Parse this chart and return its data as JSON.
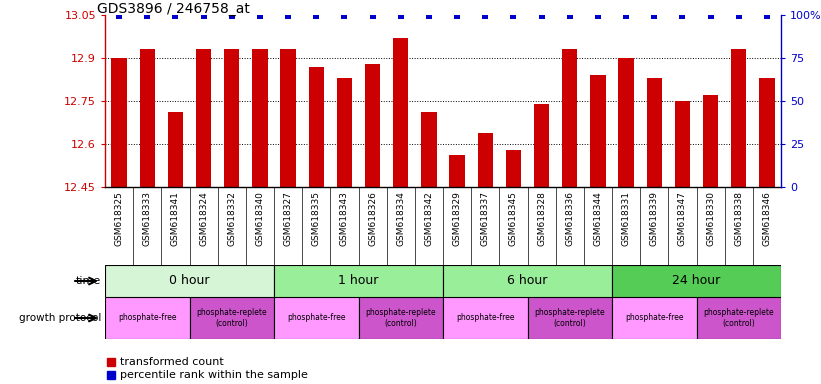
{
  "title": "GDS3896 / 246758_at",
  "samples": [
    "GSM618325",
    "GSM618333",
    "GSM618341",
    "GSM618324",
    "GSM618332",
    "GSM618340",
    "GSM618327",
    "GSM618335",
    "GSM618343",
    "GSM618326",
    "GSM618334",
    "GSM618342",
    "GSM618329",
    "GSM618337",
    "GSM618345",
    "GSM618328",
    "GSM618336",
    "GSM618344",
    "GSM618331",
    "GSM618339",
    "GSM618347",
    "GSM618330",
    "GSM618338",
    "GSM618346"
  ],
  "values": [
    12.9,
    12.93,
    12.71,
    12.93,
    12.93,
    12.93,
    12.93,
    12.87,
    12.83,
    12.88,
    12.97,
    12.71,
    12.56,
    12.64,
    12.58,
    12.74,
    12.93,
    12.84,
    12.9,
    12.83,
    12.75,
    12.77,
    12.93,
    12.83
  ],
  "ymin": 12.45,
  "ymax": 13.05,
  "yticks": [
    12.45,
    12.6,
    12.75,
    12.9,
    13.05
  ],
  "ytick_labels": [
    "12.45",
    "12.6",
    "12.75",
    "12.9",
    "13.05"
  ],
  "right_yticks": [
    0,
    25,
    50,
    75,
    100
  ],
  "right_ytick_labels": [
    "0",
    "25",
    "50",
    "75",
    "100%"
  ],
  "bar_color": "#cc0000",
  "percentile_color": "#0000cc",
  "time_groups": [
    {
      "label": "0 hour",
      "start": 0,
      "end": 6,
      "color": "#d6f5d6"
    },
    {
      "label": "1 hour",
      "start": 6,
      "end": 12,
      "color": "#99ee99"
    },
    {
      "label": "6 hour",
      "start": 12,
      "end": 18,
      "color": "#99ee99"
    },
    {
      "label": "24 hour",
      "start": 18,
      "end": 24,
      "color": "#55cc55"
    }
  ],
  "protocol_groups": [
    {
      "label": "phosphate-free",
      "start": 0,
      "end": 3,
      "color": "#ff99ff"
    },
    {
      "label": "phosphate-replete\n(control)",
      "start": 3,
      "end": 6,
      "color": "#cc55cc"
    },
    {
      "label": "phosphate-free",
      "start": 6,
      "end": 9,
      "color": "#ff99ff"
    },
    {
      "label": "phosphate-replete\n(control)",
      "start": 9,
      "end": 12,
      "color": "#cc55cc"
    },
    {
      "label": "phosphate-free",
      "start": 12,
      "end": 15,
      "color": "#ff99ff"
    },
    {
      "label": "phosphate-replete\n(control)",
      "start": 15,
      "end": 18,
      "color": "#cc55cc"
    },
    {
      "label": "phosphate-free",
      "start": 18,
      "end": 21,
      "color": "#ff99ff"
    },
    {
      "label": "phosphate-replete\n(control)",
      "start": 21,
      "end": 24,
      "color": "#cc55cc"
    }
  ],
  "legend_items": [
    {
      "label": "transformed count",
      "color": "#cc0000"
    },
    {
      "label": "percentile rank within the sample",
      "color": "#0000cc"
    }
  ],
  "bg_color": "#ffffff",
  "tick_label_color_left": "#cc0000",
  "tick_label_color_right": "#0000cc",
  "xtick_bg_color": "#d0d0d0"
}
